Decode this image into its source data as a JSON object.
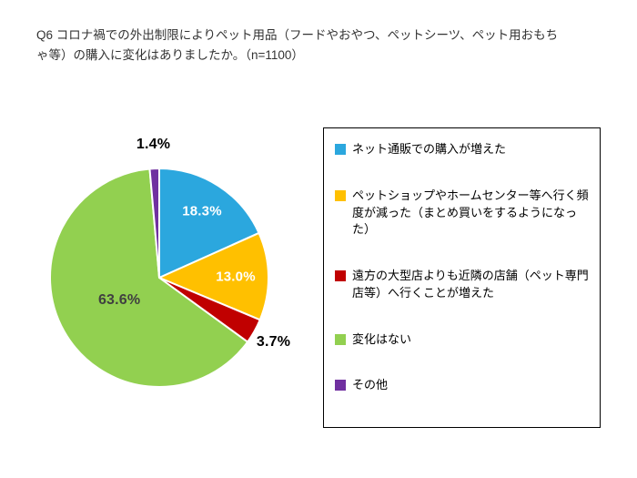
{
  "header": {
    "question": "Q6 コロナ禍での外出制限によりペット用品（フードやおやつ、ペットシーツ、ペット用おもちゃ等）の購入に変化はありましたか。（n=1100）"
  },
  "chart_data": {
    "type": "pie",
    "title": "Q6 コロナ禍での外出制限によりペット用品（フードやおやつ、ペットシーツ、ペット用おもちゃ等）の購入に変化はありましたか。",
    "sample_size": "n=1100",
    "categories": [
      "ネット通販での購入が増えた",
      "ペットショップやホームセンター等へ行く頻度が減った（まとめ買いをするようになった）",
      "遠方の大型店よりも近隣の店舗（ペット専門店等）へ行くことが増えた",
      "変化はない",
      "その他"
    ],
    "values": [
      18.3,
      13.0,
      3.7,
      63.6,
      1.4
    ],
    "value_labels": [
      "18.3%",
      "13.0%",
      "3.7%",
      "63.6%",
      "1.4%"
    ],
    "colors": [
      "#2BA7DE",
      "#FFC000",
      "#C00000",
      "#92D050",
      "#7030A0"
    ],
    "unit": "%",
    "start_angle_deg": 0,
    "direction": "clockwise",
    "legend_position": "right",
    "grid": false
  }
}
